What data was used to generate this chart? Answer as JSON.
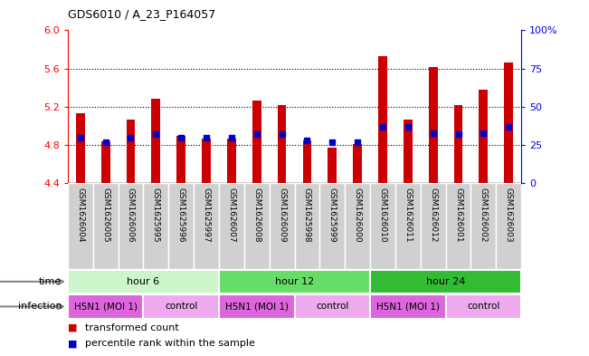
{
  "title": "GDS6010 / A_23_P164057",
  "samples": [
    "GSM1626004",
    "GSM1626005",
    "GSM1626006",
    "GSM1625995",
    "GSM1625996",
    "GSM1625997",
    "GSM1626007",
    "GSM1626008",
    "GSM1626009",
    "GSM1625998",
    "GSM1625999",
    "GSM1626000",
    "GSM1626010",
    "GSM1626011",
    "GSM1626012",
    "GSM1626001",
    "GSM1626002",
    "GSM1626003"
  ],
  "transformed_count": [
    5.13,
    4.84,
    5.07,
    5.28,
    4.9,
    4.87,
    4.87,
    5.27,
    5.22,
    4.85,
    4.77,
    4.81,
    5.73,
    5.07,
    5.62,
    5.22,
    5.38,
    5.66
  ],
  "percentile_rank": [
    30,
    27,
    30,
    32,
    30,
    30,
    30,
    32,
    32,
    28,
    27,
    27,
    37,
    37,
    33,
    32,
    33,
    37
  ],
  "ylim_left": [
    4.4,
    6.0
  ],
  "ylim_right": [
    0,
    100
  ],
  "yticks_left": [
    4.4,
    4.8,
    5.2,
    5.6,
    6.0
  ],
  "yticks_right": [
    0,
    25,
    50,
    75,
    100
  ],
  "bar_color": "#cc0000",
  "dot_color": "#0000cc",
  "baseline": 4.4,
  "dot_size": 18,
  "grid_yticks": [
    4.8,
    5.2,
    5.6
  ],
  "time_groups": [
    {
      "label": "hour 6",
      "start": 0,
      "end": 6,
      "color": "#ccf5cc"
    },
    {
      "label": "hour 12",
      "start": 6,
      "end": 12,
      "color": "#66dd66"
    },
    {
      "label": "hour 24",
      "start": 12,
      "end": 18,
      "color": "#33bb33"
    }
  ],
  "infection_groups": [
    {
      "label": "H5N1 (MOI 1)",
      "start": 0,
      "end": 3,
      "color": "#dd66dd"
    },
    {
      "label": "control",
      "start": 3,
      "end": 6,
      "color": "#eeaaee"
    },
    {
      "label": "H5N1 (MOI 1)",
      "start": 6,
      "end": 9,
      "color": "#dd66dd"
    },
    {
      "label": "control",
      "start": 9,
      "end": 12,
      "color": "#eeaaee"
    },
    {
      "label": "H5N1 (MOI 1)",
      "start": 12,
      "end": 15,
      "color": "#dd66dd"
    },
    {
      "label": "control",
      "start": 15,
      "end": 18,
      "color": "#eeaaee"
    }
  ],
  "legend_items": [
    {
      "label": "transformed count",
      "color": "#cc0000"
    },
    {
      "label": "percentile rank within the sample",
      "color": "#0000cc"
    }
  ],
  "sample_box_color": "#d0d0d0",
  "background_color": "#ffffff",
  "bar_width": 0.35
}
